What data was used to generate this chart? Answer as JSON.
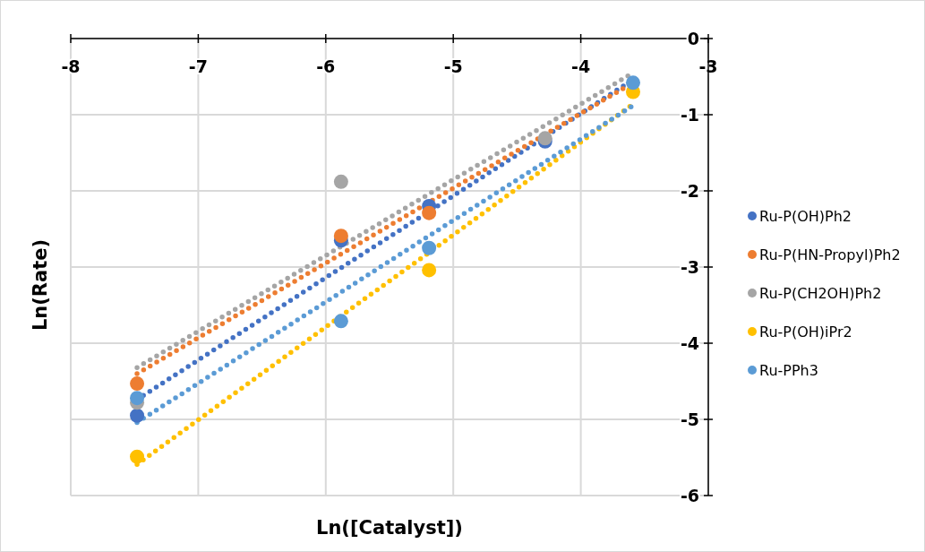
{
  "chart_data": {
    "type": "scatter",
    "xlabel": "Ln([Catalyst])",
    "ylabel": "Ln(Rate)",
    "xlim": [
      -8,
      -3
    ],
    "xticks": [
      -8,
      -7,
      -6,
      -5,
      -4,
      -3
    ],
    "ylim": [
      -6,
      0
    ],
    "yticks": [
      0,
      -1,
      -2,
      -3,
      -4,
      -5,
      -6
    ],
    "grid": true,
    "legend": "right",
    "marker": "circle",
    "x": [
      -7.48,
      -5.88,
      -5.19,
      -4.28,
      -3.59
    ],
    "series": [
      {
        "name": "Ru-P(OH)Ph2",
        "color": "#4472c4",
        "values": [
          -4.95,
          -2.65,
          -2.2,
          -1.35,
          null
        ]
      },
      {
        "name": "Ru-P(HN-Propyl)Ph2",
        "color": "#ed7d31",
        "values": [
          -4.53,
          -2.59,
          -2.29,
          null,
          null
        ]
      },
      {
        "name": "Ru-P(CH2OH)Ph2",
        "color": "#a5a5a5",
        "values": [
          -4.78,
          -1.88,
          null,
          -1.31,
          null
        ]
      },
      {
        "name": "Ru-P(OH)iPr2",
        "color": "#ffc000",
        "values": [
          -5.49,
          null,
          -3.04,
          null,
          -0.7
        ]
      },
      {
        "name": "Ru-PPh3",
        "color": "#5b9bd5",
        "values": [
          -4.72,
          -3.71,
          -2.75,
          null,
          -0.58
        ]
      },
      {
        "type": "line",
        "marker": "none",
        "line_style": "dotted",
        "color": "#4472c4",
        "values": [
          -4.74,
          -3.01,
          -2.27,
          -1.29,
          -0.54
        ]
      },
      {
        "type": "line",
        "marker": "none",
        "line_style": "dotted",
        "color": "#ed7d31",
        "values": [
          -4.4,
          -2.83,
          -2.15,
          -1.26,
          -0.58
        ]
      },
      {
        "type": "line",
        "marker": "none",
        "line_style": "dotted",
        "color": "#a5a5a5",
        "values": [
          -4.32,
          -2.73,
          -2.04,
          -1.14,
          -0.45
        ]
      },
      {
        "type": "line",
        "marker": "none",
        "line_style": "dotted",
        "color": "#ffc000",
        "values": [
          -5.59,
          -3.64,
          -2.81,
          -1.7,
          -0.86
        ]
      },
      {
        "type": "line",
        "marker": "none",
        "line_style": "dotted",
        "color": "#5b9bd5",
        "values": [
          -5.04,
          -3.33,
          -2.59,
          -1.62,
          -0.88
        ]
      }
    ]
  }
}
